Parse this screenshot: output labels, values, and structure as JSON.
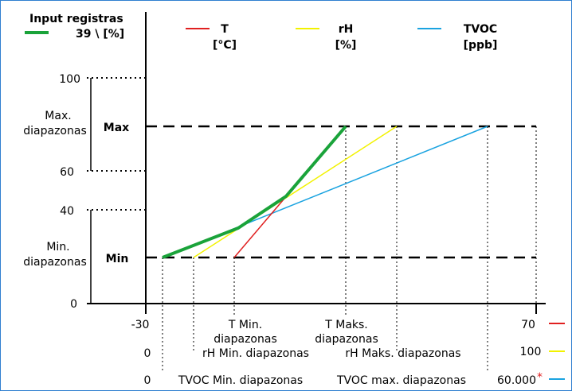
{
  "legend": {
    "input": {
      "line1": "Input registras",
      "line2": "39 \\ [%]",
      "color": "#1aa33a"
    },
    "t": {
      "line1": "T",
      "line2": "[°C]",
      "color": "#e02020"
    },
    "rh": {
      "line1": "rH",
      "line2": "[%]",
      "color": "#f2f200"
    },
    "tvoc": {
      "line1": "TVOC",
      "line2": "[ppb]",
      "color": "#1aa3e0"
    }
  },
  "y_ticks": [
    "100",
    "60",
    "40",
    "0"
  ],
  "ranges": {
    "max_label": "Max.",
    "max_label2": "diapazonas",
    "min_label": "Min.",
    "min_label2": "diapazonas",
    "max_marker": "Max",
    "min_marker": "Min"
  },
  "x_rows": {
    "t": {
      "left": "-30",
      "min": "T Min.",
      "min2": "diapazonas",
      "max": "T Maks.",
      "max2": "diapazonas",
      "right": "70"
    },
    "rh": {
      "left": "0",
      "min": "rH Min. diapazonas",
      "max": "rH Maks. diapazonas",
      "right": "100"
    },
    "tvoc": {
      "left": "0",
      "min": "TVOC Min. diapazonas",
      "max": "TVOC max. diapazonas",
      "right": "60.000",
      "footnote_mark": "*"
    }
  },
  "footnote_color": "#e02020"
}
